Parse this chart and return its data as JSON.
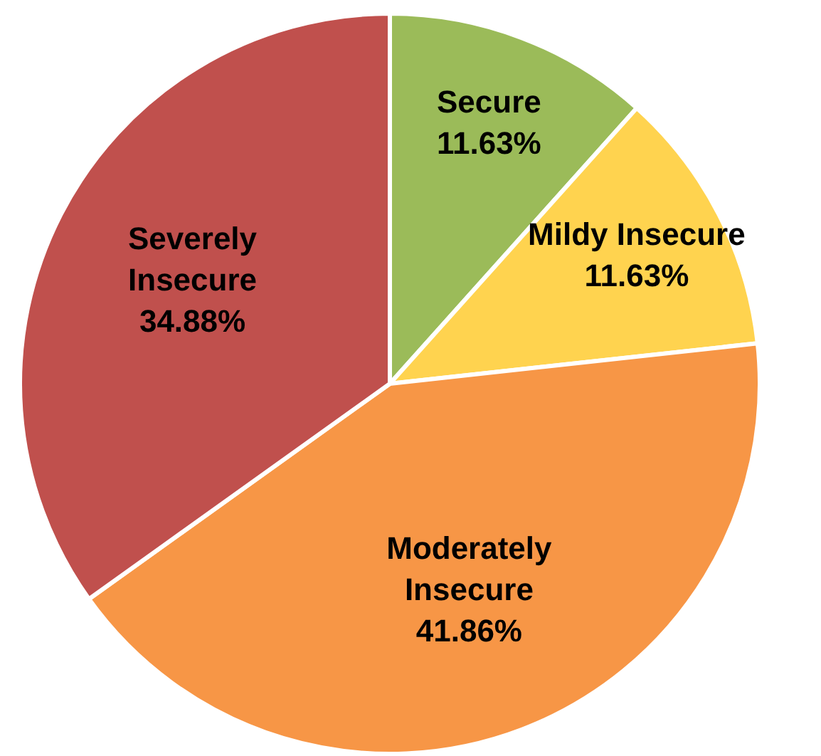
{
  "chart_data": {
    "type": "pie",
    "categories": [
      "Secure",
      "Mildy Insecure",
      "Moderately Insecure",
      "Severely Insecure"
    ],
    "values": [
      11.63,
      11.63,
      41.86,
      34.88
    ],
    "value_labels": [
      "11.63%",
      "11.63%",
      "41.86%",
      "34.88%"
    ],
    "colors": [
      "#9bbb59",
      "#ffd34f",
      "#f79646",
      "#c0504d"
    ],
    "legend": false
  }
}
